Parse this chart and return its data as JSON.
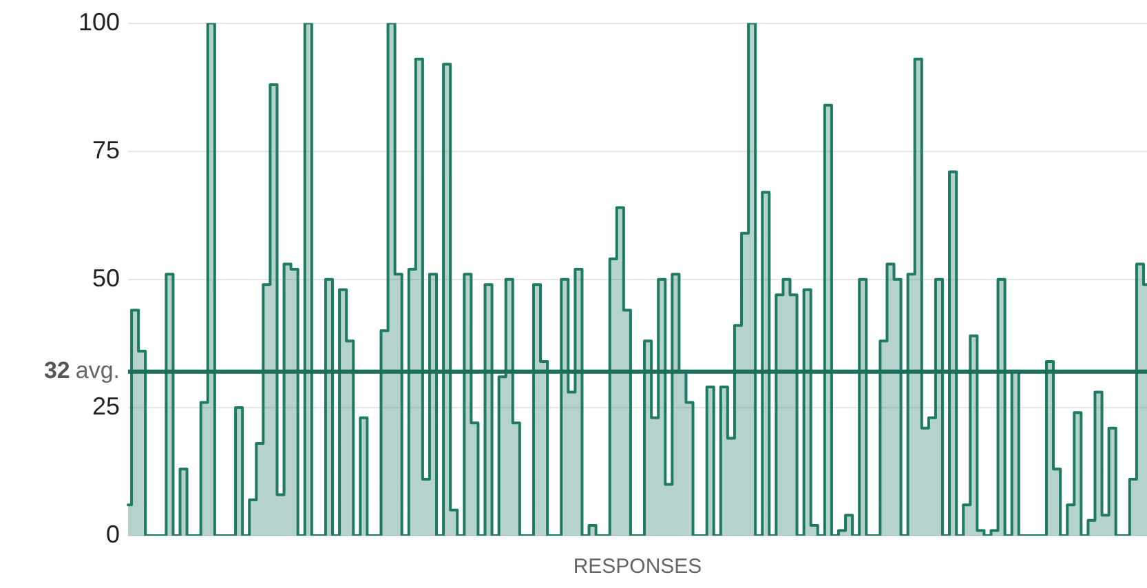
{
  "chart_data": {
    "type": "step",
    "xlabel": "RESPONSES",
    "categories": [
      null,
      null,
      null,
      null,
      null,
      null,
      null,
      null,
      null,
      null,
      null,
      null,
      null,
      null,
      null,
      null,
      null,
      null,
      null,
      null,
      null,
      null,
      null,
      null,
      null,
      null,
      null,
      null,
      null,
      null,
      null,
      null,
      null,
      null,
      null,
      null,
      null,
      null,
      null,
      null,
      null,
      null,
      null,
      null,
      null,
      null,
      null,
      null,
      null,
      null,
      null,
      null,
      null,
      null,
      null,
      null,
      null,
      null,
      null,
      null,
      null,
      null,
      null,
      null,
      null,
      null,
      null,
      null,
      null,
      null,
      null,
      null,
      null,
      null,
      null,
      null,
      null,
      null,
      null,
      null,
      null,
      null,
      null,
      null,
      null,
      null,
      null,
      null,
      null,
      null,
      null,
      null,
      null,
      null,
      null,
      null,
      null,
      null,
      null,
      null,
      null,
      null,
      null,
      null,
      null,
      null,
      null,
      null,
      null,
      null,
      null,
      null,
      null,
      null,
      null,
      null,
      null,
      null,
      null,
      null,
      null,
      null,
      null,
      null,
      null,
      null,
      null,
      null,
      null,
      null,
      null,
      null,
      null,
      null,
      null,
      null,
      null,
      null,
      null,
      null,
      null,
      null,
      null,
      null,
      null,
      null,
      null,
      null
    ],
    "series": [
      {
        "color": "#1f7a63",
        "values": [
          6,
          44,
          36,
          0,
          0,
          0,
          51,
          0,
          13,
          0,
          0,
          26,
          100,
          0,
          0,
          0,
          25,
          0,
          7,
          18,
          49,
          88,
          8,
          53,
          52,
          0,
          100,
          0,
          0,
          50,
          0,
          48,
          38,
          0,
          23,
          0,
          0,
          40,
          100,
          51,
          0,
          52,
          93,
          11,
          51,
          0,
          92,
          5,
          0,
          51,
          22,
          0,
          49,
          0,
          31,
          50,
          22,
          0,
          0,
          49,
          34,
          0,
          0,
          50,
          28,
          52,
          0,
          2,
          0,
          0,
          54,
          64,
          44,
          0,
          0,
          38,
          23,
          50,
          10,
          51,
          32,
          26,
          0,
          0,
          29,
          0,
          29,
          19,
          41,
          59,
          100,
          0,
          67,
          0,
          47,
          50,
          47,
          0,
          48,
          2,
          0,
          84,
          0,
          1,
          4,
          0,
          50,
          0,
          0,
          38,
          53,
          50,
          0,
          51,
          93,
          21,
          23,
          50,
          0,
          71,
          0,
          6,
          39,
          1,
          0,
          1,
          50,
          0,
          32,
          0,
          0,
          0,
          0,
          34,
          13,
          0,
          6,
          24,
          0,
          3,
          28,
          4,
          21,
          0,
          0,
          11,
          53,
          49
        ]
      }
    ],
    "ylim": [
      0,
      100
    ],
    "yticks": [
      0,
      25,
      50,
      75,
      100
    ],
    "grid": "y",
    "ref_lines": [
      {
        "axis": "y",
        "value": 32,
        "label": "32 avg.",
        "color": "#1a6e5a"
      }
    ]
  }
}
